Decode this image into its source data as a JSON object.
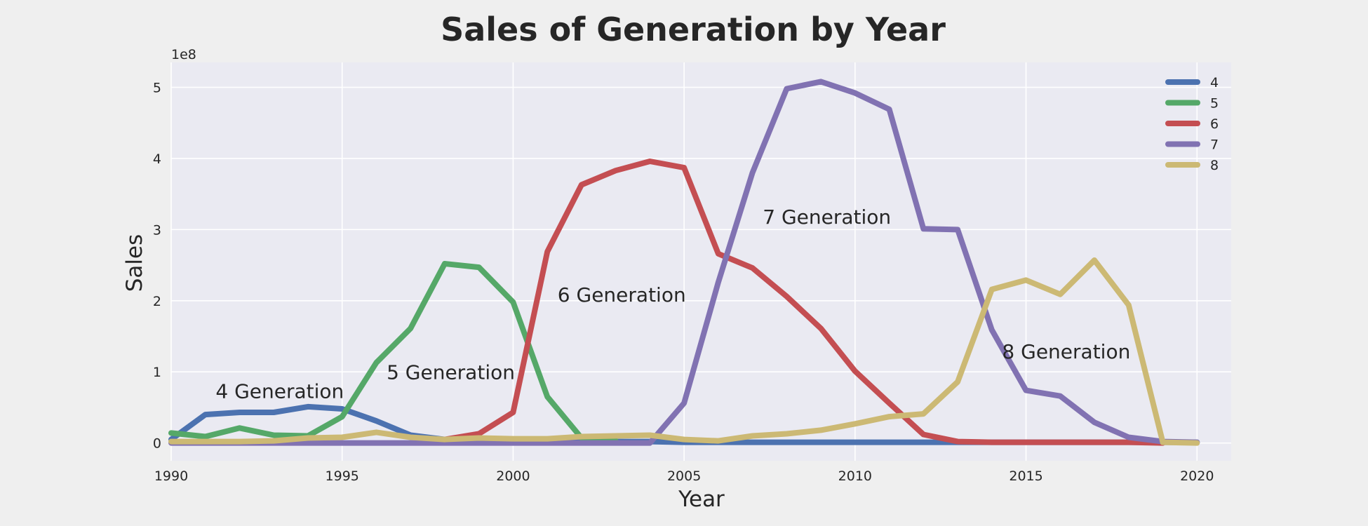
{
  "chart_data": {
    "type": "line",
    "title": "Sales of Generation by Year",
    "xlabel": "Year",
    "ylabel": "Sales",
    "y_scale_label": "1e8",
    "xlim": [
      1990,
      2021
    ],
    "ylim": [
      -0.25,
      5.35
    ],
    "y_unit_multiplier": 100000000,
    "x_ticks": [
      1990,
      1995,
      2000,
      2005,
      2010,
      2015,
      2020
    ],
    "y_ticks": [
      0,
      1,
      2,
      3,
      4,
      5
    ],
    "grid": true,
    "legend_position": "top-right",
    "background": "#eaeaf2",
    "series": [
      {
        "name": "4",
        "color": "#4c72b0",
        "points": [
          [
            1990,
            0.05
          ],
          [
            1991,
            0.4
          ],
          [
            1992,
            0.43
          ],
          [
            1993,
            0.43
          ],
          [
            1994,
            0.51
          ],
          [
            1995,
            0.48
          ],
          [
            1996,
            0.31
          ],
          [
            1997,
            0.11
          ],
          [
            1998,
            0.05
          ],
          [
            1999,
            0.03
          ],
          [
            2000,
            0.02
          ],
          [
            2001,
            0.02
          ],
          [
            2002,
            0.02
          ],
          [
            2003,
            0.02
          ],
          [
            2004,
            0.02
          ],
          [
            2005,
            0.01
          ],
          [
            2006,
            0.01
          ],
          [
            2007,
            0.01
          ],
          [
            2008,
            0.01
          ],
          [
            2009,
            0.01
          ],
          [
            2010,
            0.01
          ],
          [
            2011,
            0.01
          ],
          [
            2012,
            0.01
          ],
          [
            2013,
            0.01
          ],
          [
            2014,
            0.01
          ],
          [
            2015,
            0.01
          ],
          [
            2016,
            0.01
          ],
          [
            2017,
            0.01
          ],
          [
            2018,
            0.01
          ],
          [
            2019,
            0.01
          ],
          [
            2020,
            0.01
          ]
        ]
      },
      {
        "name": "5",
        "color": "#55a868",
        "points": [
          [
            1990,
            0.14
          ],
          [
            1991,
            0.09
          ],
          [
            1992,
            0.21
          ],
          [
            1993,
            0.11
          ],
          [
            1994,
            0.1
          ],
          [
            1995,
            0.37
          ],
          [
            1996,
            1.13
          ],
          [
            1997,
            1.61
          ],
          [
            1998,
            2.52
          ],
          [
            1999,
            2.47
          ],
          [
            2000,
            1.98
          ],
          [
            2001,
            0.65
          ],
          [
            2002,
            0.07
          ],
          [
            2003,
            0.03
          ]
        ]
      },
      {
        "name": "6",
        "color": "#c44e52",
        "points": [
          [
            1998,
            0.05
          ],
          [
            1999,
            0.13
          ],
          [
            2000,
            0.43
          ],
          [
            2001,
            2.69
          ],
          [
            2002,
            3.63
          ],
          [
            2003,
            3.83
          ],
          [
            2004,
            3.96
          ],
          [
            2005,
            3.87
          ],
          [
            2006,
            2.66
          ],
          [
            2007,
            2.46
          ],
          [
            2008,
            2.06
          ],
          [
            2009,
            1.61
          ],
          [
            2010,
            1.01
          ],
          [
            2011,
            0.56
          ],
          [
            2012,
            0.12
          ],
          [
            2013,
            0.02
          ],
          [
            2014,
            0.01
          ],
          [
            2015,
            0.01
          ],
          [
            2016,
            0.01
          ],
          [
            2017,
            0.01
          ],
          [
            2018,
            0.01
          ],
          [
            2019,
            0.0
          ]
        ]
      },
      {
        "name": "7",
        "color": "#8172b2",
        "points": [
          [
            1990,
            0.0
          ],
          [
            1991,
            0.0
          ],
          [
            1992,
            0.0
          ],
          [
            1993,
            0.0
          ],
          [
            1994,
            0.0
          ],
          [
            1995,
            0.0
          ],
          [
            1996,
            0.0
          ],
          [
            1997,
            0.0
          ],
          [
            1998,
            0.0
          ],
          [
            1999,
            0.0
          ],
          [
            2000,
            0.0
          ],
          [
            2001,
            0.0
          ],
          [
            2002,
            0.0
          ],
          [
            2003,
            0.0
          ],
          [
            2004,
            0.0
          ],
          [
            2005,
            0.56
          ],
          [
            2006,
            2.26
          ],
          [
            2007,
            3.8
          ],
          [
            2008,
            4.98
          ],
          [
            2009,
            5.08
          ],
          [
            2010,
            4.92
          ],
          [
            2011,
            4.69
          ],
          [
            2012,
            3.01
          ],
          [
            2013,
            3.0
          ],
          [
            2014,
            1.59
          ],
          [
            2015,
            0.74
          ],
          [
            2016,
            0.66
          ],
          [
            2017,
            0.29
          ],
          [
            2018,
            0.08
          ],
          [
            2019,
            0.02
          ],
          [
            2020,
            0.01
          ]
        ]
      },
      {
        "name": "8",
        "color": "#ccb974",
        "points": [
          [
            1990,
            0.02
          ],
          [
            1991,
            0.02
          ],
          [
            1992,
            0.02
          ],
          [
            1993,
            0.03
          ],
          [
            1994,
            0.07
          ],
          [
            1995,
            0.08
          ],
          [
            1996,
            0.15
          ],
          [
            1997,
            0.08
          ],
          [
            1998,
            0.05
          ],
          [
            1999,
            0.07
          ],
          [
            2000,
            0.06
          ],
          [
            2001,
            0.06
          ],
          [
            2002,
            0.09
          ],
          [
            2003,
            0.1
          ],
          [
            2004,
            0.11
          ],
          [
            2005,
            0.05
          ],
          [
            2006,
            0.03
          ],
          [
            2007,
            0.1
          ],
          [
            2008,
            0.13
          ],
          [
            2009,
            0.18
          ],
          [
            2010,
            0.27
          ],
          [
            2011,
            0.37
          ],
          [
            2012,
            0.41
          ],
          [
            2013,
            0.86
          ],
          [
            2014,
            2.16
          ],
          [
            2015,
            2.29
          ],
          [
            2016,
            2.09
          ],
          [
            2017,
            2.57
          ],
          [
            2018,
            1.94
          ],
          [
            2019,
            0.01
          ],
          [
            2020,
            0.0
          ]
        ]
      }
    ],
    "annotations": [
      {
        "text": "4 Generation",
        "x": 1991.3,
        "y": 0.63
      },
      {
        "text": "5 Generation",
        "x": 1996.3,
        "y": 0.9
      },
      {
        "text": "6 Generation",
        "x": 2001.3,
        "y": 1.99
      },
      {
        "text": "7 Generation",
        "x": 2007.3,
        "y": 3.08
      },
      {
        "text": "8 Generation",
        "x": 2014.3,
        "y": 1.19
      }
    ]
  }
}
